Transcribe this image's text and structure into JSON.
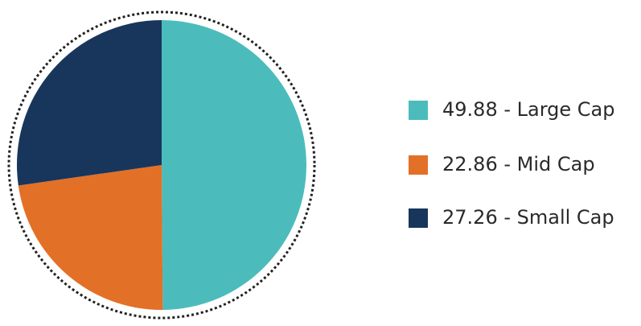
{
  "chart_data": {
    "type": "pie",
    "categories": [
      "49.88 - Large Cap",
      "22.86 - Mid Cap",
      "27.26 - Small Cap"
    ],
    "values": [
      49.88,
      22.86,
      27.26
    ],
    "colors": [
      "#4bbcbb",
      "#e37027",
      "#18365c"
    ],
    "legend": "right"
  }
}
